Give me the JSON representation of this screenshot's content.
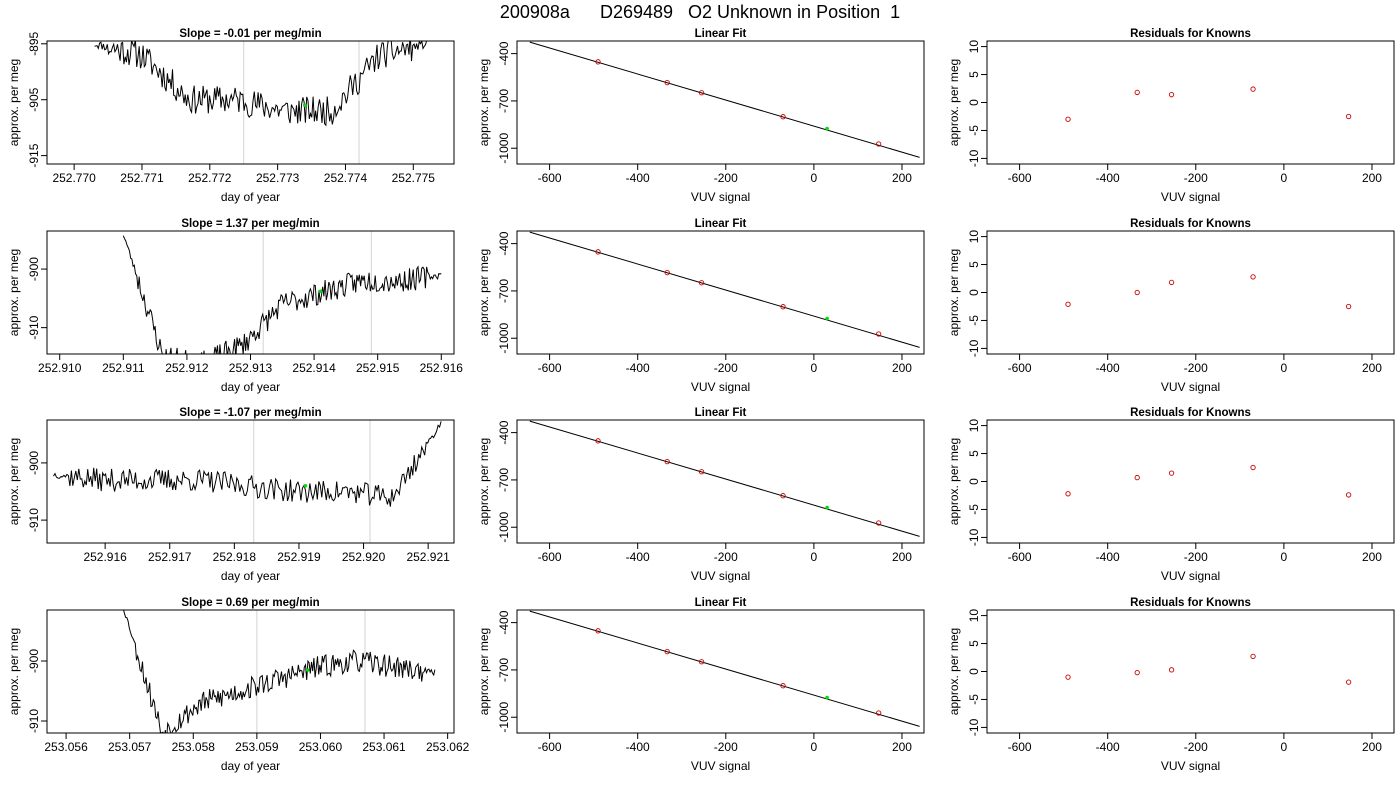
{
  "figure": {
    "title": "200908a      D269489   O2 Unknown in Position  1"
  },
  "colors": {
    "axis": "#000000",
    "trace": "#000000",
    "marker_line": "#d3d3d3",
    "known_point": "#cd0000",
    "unknown_point": "#00dd00"
  },
  "chart_data": [
    {
      "type": "line",
      "row": 0,
      "panel": "trace",
      "title": "Slope =  -0.01  per meg/min",
      "xlabel": "day of year",
      "ylabel": "approx. per meg",
      "xlim": [
        252.7696,
        252.7756
      ],
      "ylim": [
        -916.5,
        -894.5
      ],
      "xticks": [
        252.77,
        252.771,
        252.772,
        252.773,
        252.774,
        252.775
      ],
      "xtick_labels": [
        "252.770",
        "252.771",
        "252.772",
        "252.773",
        "252.774",
        "252.775"
      ],
      "yticks": [
        -915,
        -905,
        -895
      ],
      "ytick_labels": [
        "-915",
        "-905",
        "-895"
      ],
      "vlines": [
        252.7725,
        252.7742
      ],
      "trace": {
        "x0": 252.7703,
        "x1": 252.7752,
        "levels": [
          -895,
          -897,
          -905,
          -905,
          -907,
          -907,
          -897,
          -895
        ],
        "noise": 2.6,
        "seed": 11
      },
      "unknown_point": {
        "x": 252.7734,
        "y": -906
      }
    },
    {
      "type": "scatter",
      "row": 0,
      "panel": "fit",
      "title": "Linear Fit",
      "xlabel": "VUV signal",
      "ylabel": "approx. per meg",
      "xlim": [
        -674,
        250
      ],
      "ylim": [
        -1100,
        -320
      ],
      "xticks": [
        -600,
        -400,
        -200,
        0,
        200
      ],
      "xtick_labels": [
        "-600",
        "-400",
        "-200",
        "0",
        "200"
      ],
      "yticks": [
        -1000,
        -700,
        -400
      ],
      "ytick_labels": [
        "-1000",
        "-700",
        "-400"
      ],
      "fit_line": {
        "x": [
          -645,
          240
        ],
        "y": [
          -327,
          -1058
        ]
      },
      "knowns": {
        "x": [
          -490,
          -333,
          -255,
          -70,
          147
        ],
        "y": [
          -452,
          -584,
          -648,
          -800,
          -973
        ]
      },
      "unknown": {
        "x": 30,
        "y": -875
      }
    },
    {
      "type": "scatter",
      "row": 0,
      "panel": "residuals",
      "title": "Residuals for Knowns",
      "xlabel": "VUV signal",
      "ylabel": "approx. per meg",
      "xlim": [
        -674,
        250
      ],
      "ylim": [
        -11,
        11
      ],
      "xticks": [
        -600,
        -400,
        -200,
        0,
        200
      ],
      "xtick_labels": [
        "-600",
        "-400",
        "-200",
        "0",
        "200"
      ],
      "yticks": [
        -10,
        -5,
        0,
        5,
        10
      ],
      "ytick_labels": [
        "-10",
        "-5",
        "0",
        "5",
        "10"
      ],
      "knowns": {
        "x": [
          -490,
          -333,
          -255,
          -70,
          147
        ],
        "y": [
          -3.0,
          1.8,
          1.4,
          2.4,
          -2.5
        ]
      }
    },
    {
      "type": "line",
      "row": 1,
      "panel": "trace",
      "title": "Slope =  1.37  per meg/min",
      "xlabel": "day of year",
      "ylabel": "approx. per meg",
      "xlim": [
        252.9098,
        252.9162
      ],
      "ylim": [
        -914.5,
        -893.5
      ],
      "xticks": [
        252.91,
        252.911,
        252.912,
        252.913,
        252.914,
        252.915,
        252.916
      ],
      "xtick_labels": [
        "252.910",
        "252.911",
        "252.912",
        "252.913",
        "252.914",
        "252.915",
        "252.916"
      ],
      "yticks": [
        -910,
        -900
      ],
      "ytick_labels": [
        "-910",
        "-900"
      ],
      "vlines": [
        252.9132,
        252.9149
      ],
      "trace": {
        "x0": 252.911,
        "x1": 252.916,
        "levels": [
          -894,
          -915,
          -916,
          -913,
          -906,
          -904,
          -902,
          -902,
          -901
        ],
        "noise": 2.0,
        "seed": 23
      },
      "unknown_point": {
        "x": 252.9141,
        "y": -903.8
      }
    },
    {
      "type": "scatter",
      "row": 1,
      "panel": "fit",
      "title": "Linear Fit",
      "xlabel": "VUV signal",
      "ylabel": "approx. per meg",
      "xlim": [
        -674,
        250
      ],
      "ylim": [
        -1100,
        -320
      ],
      "xticks": [
        -600,
        -400,
        -200,
        0,
        200
      ],
      "xtick_labels": [
        "-600",
        "-400",
        "-200",
        "0",
        "200"
      ],
      "yticks": [
        -1000,
        -700,
        -400
      ],
      "ytick_labels": [
        "-1000",
        "-700",
        "-400"
      ],
      "fit_line": {
        "x": [
          -645,
          240
        ],
        "y": [
          -327,
          -1058
        ]
      },
      "knowns": {
        "x": [
          -490,
          -333,
          -255,
          -70,
          147
        ],
        "y": [
          -452,
          -584,
          -648,
          -800,
          -973
        ]
      },
      "unknown": {
        "x": 30,
        "y": -875
      }
    },
    {
      "type": "scatter",
      "row": 1,
      "panel": "residuals",
      "title": "Residuals for Knowns",
      "xlabel": "VUV signal",
      "ylabel": "approx. per meg",
      "xlim": [
        -674,
        250
      ],
      "ylim": [
        -11,
        11
      ],
      "xticks": [
        -600,
        -400,
        -200,
        0,
        200
      ],
      "xtick_labels": [
        "-600",
        "-400",
        "-200",
        "0",
        "200"
      ],
      "yticks": [
        -10,
        -5,
        0,
        5,
        10
      ],
      "ytick_labels": [
        "-10",
        "-5",
        "0",
        "5",
        "10"
      ],
      "knowns": {
        "x": [
          -490,
          -333,
          -255,
          -70,
          147
        ],
        "y": [
          -2.1,
          0.0,
          1.8,
          2.8,
          -2.5
        ]
      }
    },
    {
      "type": "line",
      "row": 2,
      "panel": "trace",
      "title": "Slope =  -1.07  per meg/min",
      "xlabel": "day of year",
      "ylabel": "approx. per meg",
      "xlim": [
        252.9151,
        252.9214
      ],
      "ylim": [
        -914,
        -892.5
      ],
      "xticks": [
        252.916,
        252.917,
        252.918,
        252.919,
        252.92,
        252.921
      ],
      "xtick_labels": [
        "252.916",
        "252.917",
        "252.918",
        "252.919",
        "252.920",
        "252.921"
      ],
      "yticks": [
        -910,
        -900
      ],
      "ytick_labels": [
        "-910",
        "-900"
      ],
      "vlines": [
        252.9183,
        252.9201
      ],
      "trace": {
        "x0": 252.9152,
        "x1": 252.9212,
        "levels": [
          -902,
          -903,
          -903,
          -903,
          -904,
          -905,
          -905,
          -906,
          -893
        ],
        "noise": 2.0,
        "seed": 37
      },
      "unknown_point": {
        "x": 252.9191,
        "y": -904
      }
    },
    {
      "type": "scatter",
      "row": 2,
      "panel": "fit",
      "title": "Linear Fit",
      "xlabel": "VUV signal",
      "ylabel": "approx. per meg",
      "xlim": [
        -674,
        250
      ],
      "ylim": [
        -1100,
        -320
      ],
      "xticks": [
        -600,
        -400,
        -200,
        0,
        200
      ],
      "xtick_labels": [
        "-600",
        "-400",
        "-200",
        "0",
        "200"
      ],
      "yticks": [
        -1000,
        -700,
        -400
      ],
      "ytick_labels": [
        "-1000",
        "-700",
        "-400"
      ],
      "fit_line": {
        "x": [
          -645,
          240
        ],
        "y": [
          -327,
          -1058
        ]
      },
      "knowns": {
        "x": [
          -490,
          -333,
          -255,
          -70,
          147
        ],
        "y": [
          -452,
          -584,
          -648,
          -800,
          -973
        ]
      },
      "unknown": {
        "x": 30,
        "y": -875
      }
    },
    {
      "type": "scatter",
      "row": 2,
      "panel": "residuals",
      "title": "Residuals for Knowns",
      "xlabel": "VUV signal",
      "ylabel": "approx. per meg",
      "xlim": [
        -674,
        250
      ],
      "ylim": [
        -11,
        11
      ],
      "xticks": [
        -600,
        -400,
        -200,
        0,
        200
      ],
      "xtick_labels": [
        "-600",
        "-400",
        "-200",
        "0",
        "200"
      ],
      "yticks": [
        -10,
        -5,
        0,
        5,
        10
      ],
      "ytick_labels": [
        "-10",
        "-5",
        "0",
        "5",
        "10"
      ],
      "knowns": {
        "x": [
          -490,
          -333,
          -255,
          -70,
          147
        ],
        "y": [
          -2.2,
          0.7,
          1.5,
          2.5,
          -2.4
        ]
      }
    },
    {
      "type": "line",
      "row": 3,
      "panel": "trace",
      "title": "Slope =  0.69  per meg/min",
      "xlabel": "day of year",
      "ylabel": "approx. per meg",
      "xlim": [
        253.0557,
        253.0621
      ],
      "ylim": [
        -912,
        -891.5
      ],
      "xticks": [
        253.056,
        253.057,
        253.058,
        253.059,
        253.06,
        253.061,
        253.062
      ],
      "xtick_labels": [
        "253.056",
        "253.057",
        "253.058",
        "253.059",
        "253.060",
        "253.061",
        "253.062"
      ],
      "yticks": [
        -910,
        -900
      ],
      "ytick_labels": [
        "-910",
        "-900"
      ],
      "vlines": [
        253.059,
        253.0607
      ],
      "trace": {
        "x0": 253.0569,
        "x1": 253.0618,
        "levels": [
          -891,
          -912,
          -907,
          -905,
          -903,
          -901,
          -900,
          -901,
          -902
        ],
        "noise": 1.9,
        "seed": 53
      },
      "unknown_point": {
        "x": 253.0598,
        "y": -901.5
      }
    },
    {
      "type": "scatter",
      "row": 3,
      "panel": "fit",
      "title": "Linear Fit",
      "xlabel": "VUV signal",
      "ylabel": "approx. per meg",
      "xlim": [
        -674,
        250
      ],
      "ylim": [
        -1100,
        -320
      ],
      "xticks": [
        -600,
        -400,
        -200,
        0,
        200
      ],
      "xtick_labels": [
        "-600",
        "-400",
        "-200",
        "0",
        "200"
      ],
      "yticks": [
        -1000,
        -700,
        -400
      ],
      "ytick_labels": [
        "-1000",
        "-700",
        "-400"
      ],
      "fit_line": {
        "x": [
          -645,
          240
        ],
        "y": [
          -327,
          -1058
        ]
      },
      "knowns": {
        "x": [
          -490,
          -333,
          -255,
          -70,
          147
        ],
        "y": [
          -452,
          -584,
          -648,
          -800,
          -973
        ]
      },
      "unknown": {
        "x": 30,
        "y": -875
      }
    },
    {
      "type": "scatter",
      "row": 3,
      "panel": "residuals",
      "title": "Residuals for Knowns",
      "xlabel": "VUV signal",
      "ylabel": "approx. per meg",
      "xlim": [
        -674,
        250
      ],
      "ylim": [
        -11,
        11
      ],
      "xticks": [
        -600,
        -400,
        -200,
        0,
        200
      ],
      "xtick_labels": [
        "-600",
        "-400",
        "-200",
        "0",
        "200"
      ],
      "yticks": [
        -10,
        -5,
        0,
        5,
        10
      ],
      "ytick_labels": [
        "-10",
        "-5",
        "0",
        "5",
        "10"
      ],
      "knowns": {
        "x": [
          -490,
          -333,
          -255,
          -70,
          147
        ],
        "y": [
          -1.0,
          -0.2,
          0.3,
          2.7,
          -1.9
        ]
      }
    }
  ]
}
